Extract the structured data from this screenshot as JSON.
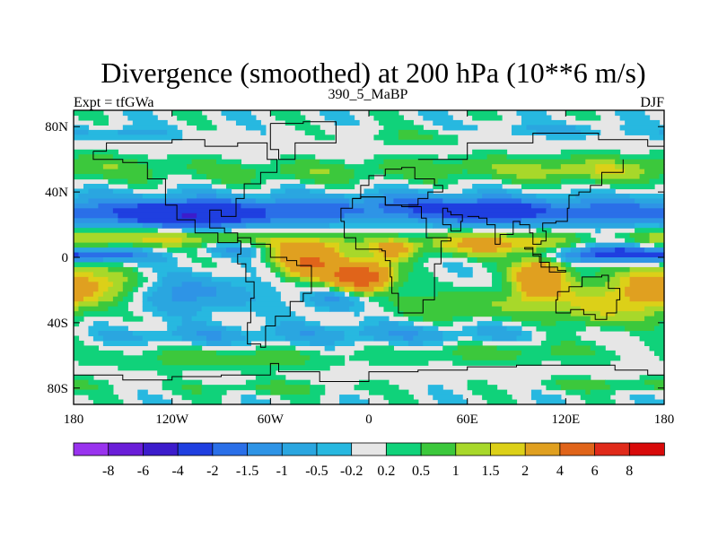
{
  "chart_data": {
    "type": "heatmap",
    "title": "Divergence (smoothed) at 200 hPa (10**6 m/s)",
    "left_label": "Expt = tfGWa",
    "center_label": "390_5_MaBP",
    "right_label": "DJF",
    "x_ticks": [
      "180",
      "120W",
      "60W",
      "0",
      "60E",
      "120E",
      "180"
    ],
    "x_tick_values": [
      -180,
      -120,
      -60,
      0,
      60,
      120,
      180
    ],
    "y_ticks": [
      "80N",
      "40N",
      "0",
      "40S",
      "80S"
    ],
    "y_tick_values": [
      80,
      40,
      0,
      -40,
      -80
    ],
    "xlim": [
      -180,
      180
    ],
    "ylim": [
      -90,
      90
    ],
    "colorbar_labels": [
      "-8",
      "-6",
      "-4",
      "-2",
      "-1.5",
      "-1",
      "-0.5",
      "-0.2",
      "0.2",
      "0.5",
      "1",
      "1.5",
      "2",
      "4",
      "6",
      "8"
    ],
    "colorbar_colors": [
      "#9933ee",
      "#6a1ed8",
      "#3c1ccc",
      "#1f3fe0",
      "#2a6fe8",
      "#2e94e6",
      "#2aa6e0",
      "#27b8e0",
      "#e6e6e6",
      "#10d27a",
      "#3cc83c",
      "#a8d82a",
      "#dcd018",
      "#e0a020",
      "#e0641a",
      "#e02a1a",
      "#d80a0a"
    ],
    "features": [
      {
        "name": "north-pacific-pos-band",
        "lon": 180,
        "lat": 55,
        "sx": 55,
        "sy": 6,
        "v": 0.8
      },
      {
        "name": "north-atlantic-pos-band",
        "lon": -40,
        "lat": 52,
        "sx": 45,
        "sy": 5,
        "v": 0.7
      },
      {
        "name": "eurasia-pos-band",
        "lon": 60,
        "lat": 55,
        "sx": 40,
        "sy": 5,
        "v": 0.7
      },
      {
        "name": "east-asia-pos-band",
        "lon": 130,
        "lat": 52,
        "sx": 30,
        "sy": 5,
        "v": 0.8
      },
      {
        "name": "arctic-pos-patch",
        "lon": 30,
        "lat": 74,
        "sx": 30,
        "sy": 4,
        "v": 0.5
      },
      {
        "name": "arctic-neg-patch",
        "lon": -150,
        "lat": 76,
        "sx": 20,
        "sy": 3,
        "v": -0.7
      },
      {
        "name": "arctic-neg-patch-2",
        "lon": 110,
        "lat": 78,
        "sx": 40,
        "sy": 3,
        "v": -0.6
      },
      {
        "name": "north-pacific-neg-belt",
        "lon": -120,
        "lat": 28,
        "sx": 60,
        "sy": 7,
        "v": -1.6
      },
      {
        "name": "atlantic-neg-belt",
        "lon": -40,
        "lat": 28,
        "sx": 35,
        "sy": 6,
        "v": -1.1
      },
      {
        "name": "africa-neg-belt",
        "lon": 20,
        "lat": 32,
        "sx": 30,
        "sy": 6,
        "v": -1.0
      },
      {
        "name": "asia-neg-core",
        "lon": 70,
        "lat": 28,
        "sx": 30,
        "sy": 6,
        "v": -2.2
      },
      {
        "name": "west-pacific-neg-belt",
        "lon": 140,
        "lat": 28,
        "sx": 40,
        "sy": 6,
        "v": -1.2
      },
      {
        "name": "central-pacific-neg-core",
        "lon": -110,
        "lat": 25,
        "sx": 22,
        "sy": 5,
        "v": -2.5
      },
      {
        "name": "equatorial-pacific-pos",
        "lon": -140,
        "lat": 12,
        "sx": 45,
        "sy": 4,
        "v": 1.8
      },
      {
        "name": "equatorial-east-pos",
        "lon": -40,
        "lat": 8,
        "sx": 25,
        "sy": 5,
        "v": 1.4
      },
      {
        "name": "south-america-pos-core",
        "lon": -35,
        "lat": -3,
        "sx": 14,
        "sy": 7,
        "v": 4.0
      },
      {
        "name": "atlantic-pos-core",
        "lon": -5,
        "lat": -12,
        "sx": 12,
        "sy": 6,
        "v": 6.0
      },
      {
        "name": "africa-pos",
        "lon": 15,
        "lat": 5,
        "sx": 10,
        "sy": 5,
        "v": 2.0
      },
      {
        "name": "indian-ocean-pos",
        "lon": 75,
        "lat": 8,
        "sx": 30,
        "sy": 5,
        "v": 2.5
      },
      {
        "name": "indonesia-pos-core",
        "lon": 105,
        "lat": -12,
        "sx": 12,
        "sy": 10,
        "v": 3.5
      },
      {
        "name": "equatorial-neg-east",
        "lon": 140,
        "lat": 2,
        "sx": 30,
        "sy": 4,
        "v": -2.5
      },
      {
        "name": "equatorial-neg-west",
        "lon": -165,
        "lat": 1,
        "sx": 22,
        "sy": 3,
        "v": -2.0
      },
      {
        "name": "equatorial-neg-center",
        "lon": -80,
        "lat": 5,
        "sx": 15,
        "sy": 3,
        "v": -1.2
      },
      {
        "name": "south-pacific-pos",
        "lon": -165,
        "lat": -18,
        "sx": 20,
        "sy": 8,
        "v": 1.8
      },
      {
        "name": "south-pacific-neg",
        "lon": -110,
        "lat": -22,
        "sx": 30,
        "sy": 8,
        "v": -1.2
      },
      {
        "name": "south-america-neg",
        "lon": -20,
        "lat": -25,
        "sx": 12,
        "sy": 6,
        "v": -1.3
      },
      {
        "name": "south-indian-pos",
        "lon": 60,
        "lat": -30,
        "sx": 35,
        "sy": 7,
        "v": 1.0
      },
      {
        "name": "australia-pos",
        "lon": 135,
        "lat": -30,
        "sx": 15,
        "sy": 10,
        "v": 1.5
      },
      {
        "name": "southeast-pacific-pos",
        "lon": 170,
        "lat": -20,
        "sx": 15,
        "sy": 12,
        "v": 2.0
      },
      {
        "name": "southern-ocean-neg",
        "lon": 20,
        "lat": -47,
        "sx": 60,
        "sy": 5,
        "v": -0.9
      },
      {
        "name": "southern-ocean-neg-2",
        "lon": -110,
        "lat": -48,
        "sx": 40,
        "sy": 4,
        "v": -0.7
      },
      {
        "name": "southern-ocean-pos",
        "lon": -90,
        "lat": -62,
        "sx": 50,
        "sy": 5,
        "v": 0.8
      },
      {
        "name": "southern-ocean-pos-2",
        "lon": 80,
        "lat": -58,
        "sx": 50,
        "sy": 5,
        "v": 0.7
      },
      {
        "name": "antarctic-pos",
        "lon": -60,
        "lat": -80,
        "sx": 40,
        "sy": 3,
        "v": 0.6
      },
      {
        "name": "antarctic-pos-2",
        "lon": 150,
        "lat": -78,
        "sx": 35,
        "sy": 3,
        "v": 0.7
      }
    ]
  }
}
